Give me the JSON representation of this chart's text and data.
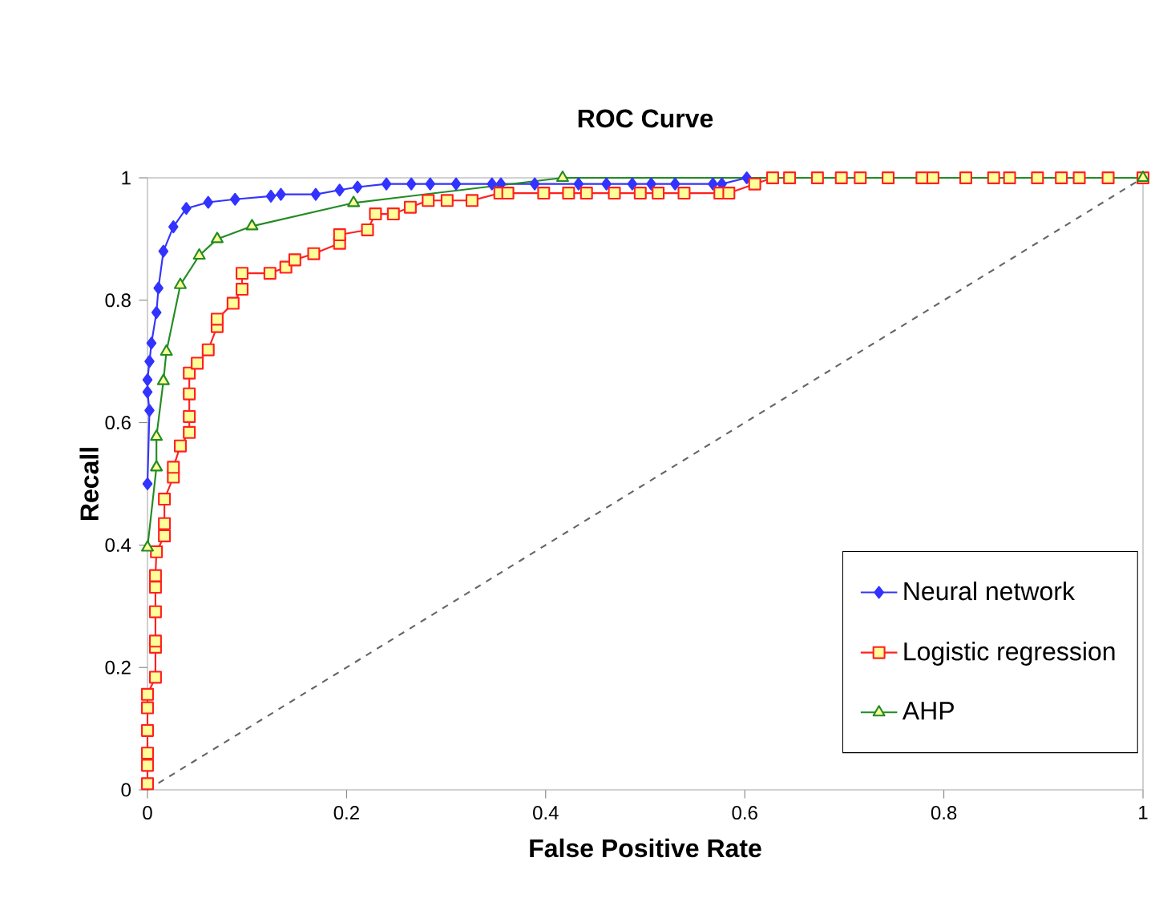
{
  "chart_data": {
    "type": "line",
    "title": "ROC Curve",
    "xlabel": "False Positive Rate",
    "ylabel": "Recall",
    "xlim": [
      0,
      1
    ],
    "ylim": [
      0,
      1
    ],
    "xticks": [
      0,
      0.2,
      0.4,
      0.6,
      0.8,
      1
    ],
    "yticks": [
      0,
      0.2,
      0.4,
      0.6,
      0.8,
      1
    ],
    "grid": false,
    "legend": "bottom right",
    "series": [
      {
        "name": "Neural network",
        "color": "#3333ff",
        "marker": "diamond",
        "x": [
          0,
          0.002,
          0,
          0,
          0.002,
          0.004,
          0.009,
          0.011,
          0.016,
          0.026,
          0.039,
          0.061,
          0.088,
          0.124,
          0.134,
          0.169,
          0.193,
          0.211,
          0.24,
          0.265,
          0.284,
          0.31,
          0.346,
          0.355,
          0.389,
          0.433,
          0.461,
          0.487,
          0.506,
          0.53,
          0.568,
          0.577,
          0.602
        ],
        "values": [
          0.5,
          0.62,
          0.65,
          0.67,
          0.7,
          0.73,
          0.78,
          0.82,
          0.88,
          0.92,
          0.95,
          0.96,
          0.965,
          0.97,
          0.973,
          0.973,
          0.98,
          0.985,
          0.99,
          0.99,
          0.99,
          0.99,
          0.99,
          0.99,
          0.99,
          0.99,
          0.99,
          0.99,
          0.99,
          0.99,
          0.99,
          0.99,
          1.0
        ]
      },
      {
        "name": "Logistic regression",
        "color": "#ff2020",
        "marker": "square",
        "x": [
          0,
          0,
          0,
          0,
          0,
          0,
          0.008,
          0.008,
          0.008,
          0.008,
          0.008,
          0.008,
          0.009,
          0.017,
          0.017,
          0.017,
          0.026,
          0.026,
          0.033,
          0.042,
          0.042,
          0.042,
          0.042,
          0.05,
          0.061,
          0.07,
          0.07,
          0.086,
          0.095,
          0.095,
          0.123,
          0.139,
          0.148,
          0.167,
          0.193,
          0.193,
          0.221,
          0.229,
          0.247,
          0.264,
          0.282,
          0.301,
          0.326,
          0.354,
          0.362,
          0.398,
          0.423,
          0.441,
          0.469,
          0.495,
          0.513,
          0.539,
          0.575,
          0.584,
          0.61,
          0.628,
          0.645,
          0.673,
          0.697,
          0.716,
          0.744,
          0.778,
          0.789,
          0.822,
          0.85,
          0.866,
          0.894,
          0.918,
          0.936,
          0.965,
          1.0
        ],
        "values": [
          0.01,
          0.04,
          0.06,
          0.097,
          0.134,
          0.156,
          0.184,
          0.233,
          0.243,
          0.291,
          0.331,
          0.35,
          0.389,
          0.415,
          0.435,
          0.475,
          0.511,
          0.527,
          0.562,
          0.584,
          0.61,
          0.647,
          0.681,
          0.697,
          0.719,
          0.757,
          0.769,
          0.795,
          0.818,
          0.844,
          0.844,
          0.854,
          0.866,
          0.876,
          0.893,
          0.907,
          0.915,
          0.941,
          0.941,
          0.952,
          0.963,
          0.963,
          0.963,
          0.975,
          0.975,
          0.975,
          0.975,
          0.975,
          0.975,
          0.975,
          0.975,
          0.975,
          0.975,
          0.975,
          0.99,
          1.0,
          1.0,
          1.0,
          1.0,
          1.0,
          1.0,
          1.0,
          1.0,
          1.0,
          1.0,
          1.0,
          1.0,
          1.0,
          1.0,
          1.0,
          1.0
        ]
      },
      {
        "name": "AHP",
        "color": "#228b22",
        "marker": "triangle",
        "x": [
          0,
          0.009,
          0.009,
          0.016,
          0.019,
          0.033,
          0.052,
          0.07,
          0.105,
          0.207,
          0.417,
          1.0
        ],
        "values": [
          0.396,
          0.527,
          0.577,
          0.668,
          0.716,
          0.825,
          0.873,
          0.9,
          0.921,
          0.959,
          1.0,
          1.0
        ]
      },
      {
        "color": "#666666",
        "marker": "none",
        "line_style": "dashed",
        "x": [
          0,
          1
        ],
        "values": [
          0,
          1
        ]
      }
    ]
  }
}
